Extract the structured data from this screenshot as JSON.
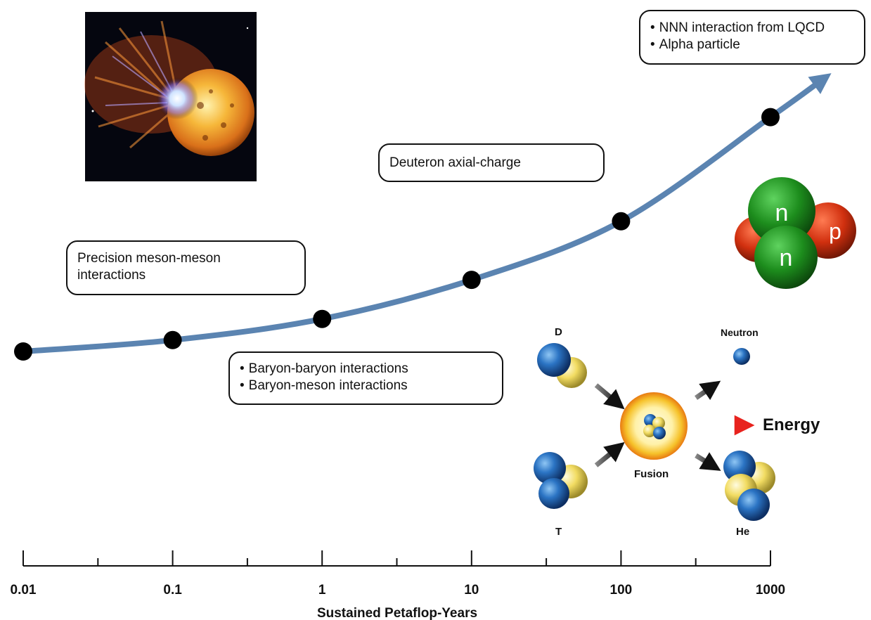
{
  "chart_data": {
    "type": "line",
    "x_scale": "log",
    "xlim": [
      0.01,
      1000
    ],
    "x": [
      0.01,
      0.1,
      1,
      10,
      100,
      1000
    ],
    "y": [
      1.0,
      1.35,
      2.0,
      3.2,
      5.0,
      8.2
    ],
    "ticks_major": [
      "0.01",
      "0.1",
      "1",
      "10",
      "100",
      "1000"
    ],
    "xlabel": "Sustained Petaflop-Years",
    "line_color": "#5b84b1",
    "marker_color": "#000000"
  },
  "annotations": {
    "meson": {
      "line1": "Precision meson-meson",
      "line2": "interactions"
    },
    "baryon": {
      "items": [
        "Baryon-baryon interactions",
        "Baryon-meson interactions"
      ]
    },
    "deuteron": {
      "text": "Deuteron axial-charge"
    },
    "nnn": {
      "items": [
        "NNN interaction from LQCD",
        "Alpha particle"
      ]
    }
  },
  "nucleus": {
    "n1": "n",
    "n2": "n",
    "p": "p"
  },
  "fusion": {
    "d": "D",
    "t": "T",
    "neutron": "Neutron",
    "fusion": "Fusion",
    "he": "He",
    "energy": "Energy"
  },
  "colors": {
    "neutron_green": "#1b8a1b",
    "proton_red": "#c62b0e",
    "nucleon_blue": "#1f5fa8",
    "nucleon_yellow": "#e8cf45",
    "energy_red": "#e8231e"
  },
  "images": {
    "star": "solar-flare-star-illustration"
  }
}
